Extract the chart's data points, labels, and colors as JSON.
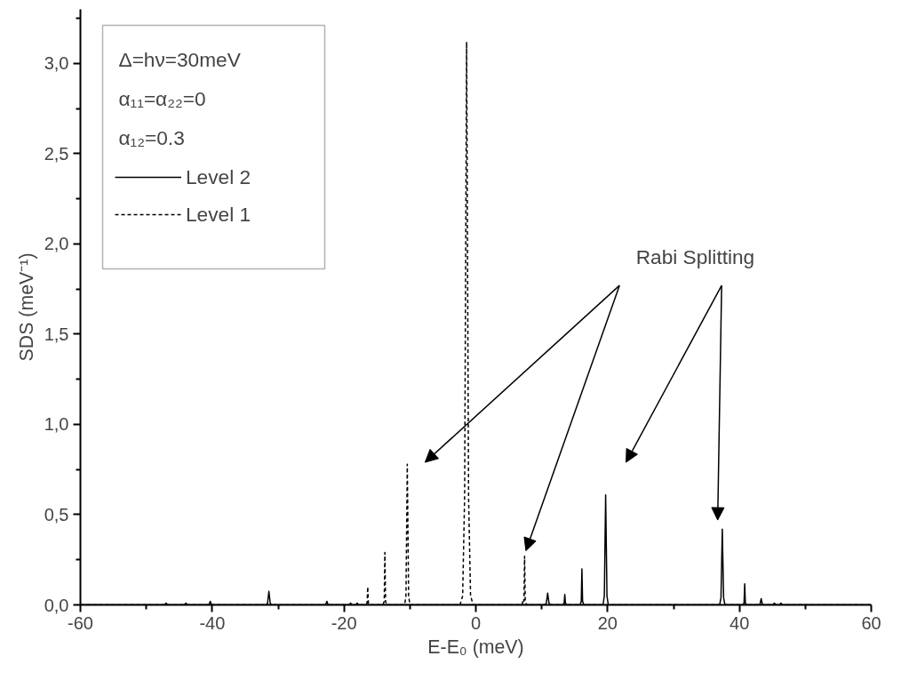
{
  "chart_data": {
    "type": "line",
    "xlabel": "E-E₀ (meV)",
    "ylabel": "SDS (meV⁻¹)",
    "xlim": [
      -60,
      60
    ],
    "ylim": [
      0,
      3.3
    ],
    "xticks": [
      -60,
      {
        "value": -50,
        "label": null
      },
      -40,
      {
        "value": -30,
        "label": null
      },
      -20,
      {
        "value": -10,
        "label": null
      },
      0,
      {
        "value": 10,
        "label": null
      },
      20,
      {
        "value": 30,
        "label": null
      },
      40,
      {
        "value": 50,
        "label": null
      },
      60
    ],
    "yticks": [
      {
        "value": 0,
        "label": "0,0"
      },
      {
        "value": 0.25,
        "label": null
      },
      {
        "value": 0.5,
        "label": "0,5"
      },
      {
        "value": 0.75,
        "label": null
      },
      {
        "value": 1,
        "label": "1,0"
      },
      {
        "value": 1.25,
        "label": null
      },
      {
        "value": 1.5,
        "label": "1,5"
      },
      {
        "value": 1.75,
        "label": null
      },
      {
        "value": 2,
        "label": "2,0"
      },
      {
        "value": 2.25,
        "label": null
      },
      {
        "value": 2.5,
        "label": "2,5"
      },
      {
        "value": 2.75,
        "label": null
      },
      {
        "value": 3,
        "label": "3,0"
      },
      {
        "value": 3.25,
        "label": null
      }
    ],
    "grid": false,
    "legend": "top left",
    "annotations": [
      "Δ=hν=30meV",
      "α₁₁=α₂₂=0",
      "α₁₂=0.3",
      "Rabi Splitting"
    ],
    "series": [
      {
        "name": "Level 2",
        "color": "#000000",
        "line_style": "solid",
        "x": [
          -60,
          -47.2,
          -47,
          -46.8,
          -44.2,
          -44,
          -43.8,
          -40.5,
          -40.3,
          -40.1,
          -31.8,
          -31.6,
          -31.4,
          -31.2,
          -31,
          -22.8,
          -22.6,
          -22.4,
          -19.2,
          -19,
          -18.8,
          -18.2,
          -18,
          -17.8,
          10.5,
          10.7,
          10.9,
          11.1,
          11.3,
          13.2,
          13.4,
          13.5,
          13.6,
          13.8,
          15.8,
          16,
          16.1,
          16.2,
          16.4,
          19.3,
          19.5,
          19.7,
          19.9,
          20.1,
          37,
          37.2,
          37.4,
          37.6,
          37.8,
          40.5,
          40.7,
          40.8,
          40.9,
          41.1,
          43.1,
          43.3,
          43.5,
          45.1,
          45.3,
          45.5,
          46.1,
          46.3,
          46.5,
          60
        ],
        "values": [
          0,
          0,
          0.01,
          0,
          0,
          0.01,
          0,
          0,
          0.02,
          0,
          0,
          0.01,
          0.075,
          0.01,
          0,
          0,
          0.02,
          0,
          0,
          0.01,
          0,
          0,
          0.01,
          0,
          0,
          0.01,
          0.065,
          0.01,
          0,
          0,
          0.01,
          0.058,
          0.01,
          0,
          0,
          0.02,
          0.2,
          0.02,
          0,
          0,
          0.05,
          0.61,
          0.05,
          0,
          0,
          0.04,
          0.42,
          0.04,
          0,
          0,
          0.01,
          0.117,
          0.01,
          0,
          0,
          0.035,
          0,
          0,
          0.01,
          0,
          0,
          0.01,
          0,
          0
        ]
      },
      {
        "name": "Level 1",
        "color": "#000000",
        "line_style": "dashed",
        "x": [
          -60,
          -16.7,
          -16.5,
          -16.4,
          -16.3,
          -16.1,
          -14.1,
          -13.9,
          -13.8,
          -13.7,
          -13.5,
          -10.8,
          -10.6,
          -10.4,
          -10.2,
          -10,
          -2.4,
          -2,
          -1.7,
          -1.4,
          -1.1,
          -0.8,
          -0.4,
          7.0,
          7.2,
          7.3,
          7.4,
          7.5,
          7.7,
          60
        ],
        "values": [
          0,
          0,
          0.01,
          0.1,
          0.01,
          0,
          0,
          0.02,
          0.29,
          0.02,
          0,
          0,
          0.05,
          0.78,
          0.05,
          0,
          0,
          0.05,
          0.6,
          3.12,
          0.6,
          0.05,
          0,
          0,
          0.03,
          0.02,
          0.27,
          0.02,
          0,
          0
        ]
      }
    ]
  }
}
